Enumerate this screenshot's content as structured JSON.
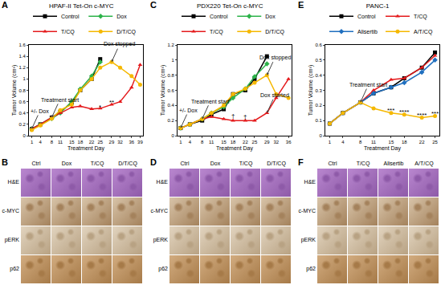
{
  "chart_data": [
    {
      "type": "line",
      "label": "A",
      "title": "HPAF-II Tet-On c-MYC",
      "x_label": "Treatment Day",
      "y_label": "Tumor Volume (cm³)",
      "x": [
        1,
        4,
        8,
        11,
        15,
        18,
        22,
        25,
        29,
        32,
        36,
        39
      ],
      "xlim": [
        0,
        40
      ],
      "xticks": [
        1,
        4,
        8,
        11,
        15,
        18,
        22,
        25,
        29,
        32,
        36,
        39
      ],
      "ylim": [
        0,
        1.6
      ],
      "yticks": [
        0,
        0.2,
        0.4,
        0.6,
        0.8,
        1,
        1.2,
        1.4,
        1.6
      ],
      "grid": false,
      "legend": "top",
      "series": [
        {
          "name": "Control",
          "color": "#000000",
          "marker": "square",
          "values": [
            0.12,
            0.2,
            0.32,
            0.42,
            0.58,
            0.8,
            1.0,
            1.35,
            null,
            null,
            null,
            null
          ]
        },
        {
          "name": "Dox",
          "color": "#2db34a",
          "marker": "diamond",
          "values": [
            0.12,
            0.2,
            0.3,
            0.4,
            0.6,
            0.82,
            1.05,
            1.3,
            null,
            null,
            null,
            null
          ]
        },
        {
          "name": "T/CQ",
          "color": "#e41a1c",
          "marker": "triangle-up",
          "values": [
            0.12,
            0.2,
            0.32,
            0.4,
            0.5,
            0.52,
            0.47,
            0.48,
            0.55,
            0.6,
            0.85,
            1.25
          ]
        },
        {
          "name": "D/T/CQ",
          "color": "#f5b800",
          "marker": "circle",
          "values": [
            0.1,
            0.18,
            0.3,
            0.45,
            0.55,
            0.8,
            1.0,
            1.2,
            1.3,
            1.2,
            1.05,
            0.9
          ]
        }
      ],
      "annotations": [
        {
          "text": "+/- Dox",
          "x": 1,
          "y": 0.12
        },
        {
          "text": "Treatment start",
          "x": 8,
          "y": 0.32
        },
        {
          "text": "Dox stopped",
          "x": 29,
          "y": 1.3
        }
      ],
      "significance": [
        {
          "text": "*",
          "x": 25,
          "y": 0.6
        },
        {
          "text": "**",
          "x": 29,
          "y": 0.68
        }
      ]
    },
    {
      "type": "line",
      "label": "C",
      "title": "PDX220 Tet-On c-MYC",
      "x_label": "Treatment Day",
      "y_label": "Tumor Volume (cm³)",
      "x": [
        1,
        4,
        8,
        11,
        15,
        18,
        22,
        25,
        29,
        32,
        36
      ],
      "xlim": [
        0,
        37
      ],
      "xticks": [
        1,
        4,
        8,
        11,
        15,
        18,
        22,
        25,
        29,
        32,
        36
      ],
      "ylim": [
        0,
        1.2
      ],
      "yticks": [
        0,
        0.2,
        0.4,
        0.6,
        0.8,
        1,
        1.2
      ],
      "grid": false,
      "legend": "top",
      "series": [
        {
          "name": "Control",
          "color": "#000000",
          "marker": "square",
          "values": [
            0.1,
            0.15,
            0.2,
            0.28,
            0.35,
            0.55,
            0.6,
            0.75,
            1.05,
            null,
            null
          ]
        },
        {
          "name": "Dox",
          "color": "#2db34a",
          "marker": "diamond",
          "values": [
            0.1,
            0.15,
            0.22,
            0.3,
            0.38,
            0.5,
            0.62,
            0.78,
            0.95,
            null,
            null
          ]
        },
        {
          "name": "T/CQ",
          "color": "#e41a1c",
          "marker": "triangle-up",
          "values": [
            0.1,
            0.15,
            0.22,
            0.25,
            0.22,
            0.2,
            0.2,
            0.2,
            0.3,
            0.5,
            0.75
          ]
        },
        {
          "name": "D/T/CQ",
          "color": "#f5b800",
          "marker": "circle",
          "values": [
            0.1,
            0.15,
            0.22,
            0.3,
            0.4,
            0.55,
            0.62,
            0.7,
            0.8,
            0.55,
            0.5
          ]
        }
      ],
      "annotations": [
        {
          "text": "+/- Dox",
          "x": 1,
          "y": 0.1
        },
        {
          "text": "Treatment start",
          "x": 8,
          "y": 0.22
        },
        {
          "text": "Dox stopped",
          "x": 29,
          "y": 0.8
        },
        {
          "text": "Dox started",
          "x": 29,
          "y": 0.3
        }
      ],
      "significance": [
        {
          "text": "†",
          "x": 18,
          "y": 0.33
        },
        {
          "text": "†",
          "x": 22,
          "y": 0.32
        }
      ]
    },
    {
      "type": "line",
      "label": "E",
      "title": "PANC-1",
      "x_label": "Treatment Day",
      "y_label": "Tumor Volume (cm³)",
      "x": [
        1,
        4,
        8,
        11,
        15,
        18,
        22,
        25
      ],
      "xlim": [
        0,
        26
      ],
      "xticks": [
        1,
        4,
        8,
        11,
        15,
        18,
        22,
        25
      ],
      "ylim": [
        0,
        0.6
      ],
      "yticks": [
        0,
        0.1,
        0.2,
        0.3,
        0.4,
        0.5,
        0.6
      ],
      "grid": false,
      "legend": "top",
      "series": [
        {
          "name": "Control",
          "color": "#000000",
          "marker": "square",
          "values": [
            0.08,
            0.15,
            0.22,
            0.28,
            0.32,
            0.38,
            0.45,
            0.55
          ]
        },
        {
          "name": "T/CQ",
          "color": "#e41a1c",
          "marker": "triangle-up",
          "values": [
            0.08,
            0.15,
            0.22,
            0.3,
            0.37,
            0.38,
            0.45,
            0.53
          ]
        },
        {
          "name": "Alisertib",
          "color": "#1f6fbf",
          "marker": "diamond",
          "values": [
            0.08,
            0.15,
            0.22,
            0.28,
            0.32,
            0.35,
            0.42,
            0.5
          ]
        },
        {
          "name": "A/T/CQ",
          "color": "#f5b800",
          "marker": "circle",
          "values": [
            0.08,
            0.15,
            0.22,
            0.18,
            0.15,
            0.14,
            0.12,
            0.13
          ]
        }
      ],
      "annotations": [
        {
          "text": "Treatment start",
          "x": 8,
          "y": 0.22
        }
      ],
      "significance": [
        {
          "text": "***",
          "x": 15,
          "y": 0.2
        },
        {
          "text": "****",
          "x": 18,
          "y": 0.19
        },
        {
          "text": "****",
          "x": 22,
          "y": 0.17
        },
        {
          "text": "***",
          "x": 25,
          "y": 0.18
        }
      ]
    }
  ],
  "histology": [
    {
      "label": "B",
      "columns": [
        "Ctrl",
        "Dox",
        "T/CQ",
        "D/T/CQ"
      ],
      "rows": [
        "H&E",
        "c-MYC",
        "pERK",
        "p62"
      ]
    },
    {
      "label": "D",
      "columns": [
        "Ctrl",
        "Dox",
        "T/CQ",
        "D/T/CQ"
      ],
      "rows": [
        "H&E",
        "c-MYC",
        "pERK",
        "p62"
      ]
    },
    {
      "label": "F",
      "columns": [
        "Ctrl",
        "T/CQ",
        "Alisertib",
        "A/T/CQ"
      ],
      "rows": [
        "H&E",
        "c-MYC",
        "pERK",
        "p62"
      ]
    }
  ]
}
